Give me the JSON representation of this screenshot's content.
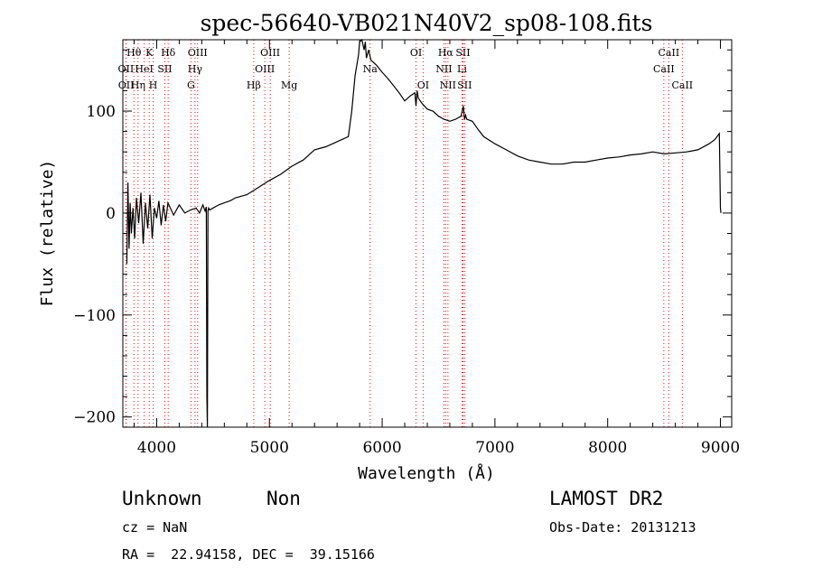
{
  "chart_data": {
    "type": "line",
    "title": "spec-56640-VB021N40V2_sp08-108.fits",
    "xlabel": "Wavelength (Å)",
    "ylabel": "Flux (relative)",
    "xlim": [
      3700,
      9100
    ],
    "ylim": [
      -210,
      170
    ],
    "xticks": [
      4000,
      5000,
      6000,
      7000,
      8000,
      9000
    ],
    "yticks": [
      -200,
      -100,
      0,
      100
    ],
    "ytick_labels": [
      "−200",
      "−100",
      "0",
      "100"
    ],
    "grid": false,
    "series": [
      {
        "x": [
          3735,
          3745,
          3755,
          3765,
          3775,
          3790,
          3805,
          3820,
          3840,
          3860,
          3880,
          3900,
          3920,
          3940,
          3960,
          3980,
          4000,
          4020,
          4040,
          4060,
          4080,
          4100,
          4150,
          4200,
          4250,
          4300,
          4350,
          4380,
          4410,
          4430,
          4440,
          4445,
          4450,
          4455,
          4460,
          4470,
          4500,
          4550,
          4600,
          4650,
          4700,
          4800,
          4900,
          5000,
          5100,
          5200,
          5300,
          5400,
          5500,
          5600,
          5700,
          5730,
          5760,
          5790,
          5800,
          5820,
          5840,
          5850,
          5860,
          5880,
          5900,
          5950,
          6000,
          6050,
          6100,
          6150,
          6200,
          6250,
          6290,
          6300,
          6310,
          6320,
          6350,
          6400,
          6450,
          6500,
          6550,
          6600,
          6650,
          6700,
          6720,
          6730,
          6740,
          6750,
          6800,
          6850,
          6900,
          7000,
          7100,
          7200,
          7300,
          7400,
          7500,
          7600,
          7700,
          7800,
          7900,
          8000,
          8100,
          8200,
          8300,
          8400,
          8500,
          8600,
          8700,
          8800,
          8900,
          8950,
          8990,
          9000,
          9005
        ],
        "y": [
          -50,
          30,
          -35,
          10,
          -20,
          5,
          -25,
          15,
          -10,
          20,
          -30,
          10,
          -15,
          18,
          -25,
          5,
          -5,
          12,
          -12,
          8,
          -8,
          10,
          -2,
          8,
          0,
          3,
          5,
          0,
          8,
          2,
          6,
          -180,
          -210,
          2,
          5,
          3,
          5,
          8,
          10,
          12,
          15,
          18,
          25,
          32,
          38,
          46,
          52,
          62,
          65,
          70,
          75,
          100,
          135,
          155,
          168,
          172,
          160,
          168,
          152,
          160,
          150,
          145,
          138,
          132,
          125,
          118,
          110,
          115,
          118,
          105,
          120,
          113,
          108,
          102,
          100,
          95,
          92,
          90,
          92,
          95,
          105,
          92,
          96,
          92,
          90,
          82,
          75,
          68,
          62,
          56,
          52,
          50,
          48,
          48,
          50,
          50,
          52,
          54,
          55,
          57,
          58,
          60,
          58,
          59,
          60,
          62,
          68,
          72,
          78,
          5,
          0
        ]
      }
    ],
    "spectral_lines": [
      {
        "name": "Hθ",
        "x": 3798,
        "row": 1
      },
      {
        "name": "OII",
        "x": 3727,
        "row": 2
      },
      {
        "name": "OII",
        "x": 3729,
        "row": 3
      },
      {
        "name": "Hη",
        "x": 3835,
        "row": 3
      },
      {
        "name": "K",
        "x": 3934,
        "row": 1
      },
      {
        "name": "HeI",
        "x": 3889,
        "row": 2
      },
      {
        "name": "H",
        "x": 3969,
        "row": 3
      },
      {
        "name": "SII",
        "x": 4072,
        "row": 2
      },
      {
        "name": "Hδ",
        "x": 4102,
        "row": 1
      },
      {
        "name": "OIII",
        "x": 4363,
        "row": 1
      },
      {
        "name": "Hγ",
        "x": 4340,
        "row": 2
      },
      {
        "name": "G",
        "x": 4304,
        "row": 3
      },
      {
        "name": "Hβ",
        "x": 4861,
        "row": 3
      },
      {
        "name": "OIII",
        "x": 4959,
        "row": 2
      },
      {
        "name": "OIII",
        "x": 5007,
        "row": 1
      },
      {
        "name": "Mg",
        "x": 5175,
        "row": 3
      },
      {
        "name": "Na",
        "x": 5893,
        "row": 2
      },
      {
        "name": "OI",
        "x": 6300,
        "row": 1
      },
      {
        "name": "OI",
        "x": 6363,
        "row": 3
      },
      {
        "name": "Hα",
        "x": 6563,
        "row": 1
      },
      {
        "name": "NII",
        "x": 6548,
        "row": 2
      },
      {
        "name": "NII",
        "x": 6583,
        "row": 3
      },
      {
        "name": "SII",
        "x": 6716,
        "row": 1
      },
      {
        "name": "Li",
        "x": 6708,
        "row": 2
      },
      {
        "name": "SII",
        "x": 6731,
        "row": 3
      },
      {
        "name": "CaII",
        "x": 8542,
        "row": 1
      },
      {
        "name": "CaII",
        "x": 8498,
        "row": 2
      },
      {
        "name": "CaII",
        "x": 8662,
        "row": 3
      }
    ],
    "colors": {
      "spectrum": "#000000",
      "line_markers": "#ff0000",
      "axes": "#000000"
    }
  },
  "footer": {
    "class_text": "Unknown",
    "subclass_text": "Non",
    "cz_text": "cz = NaN",
    "coords_text": "RA =  22.94158, DEC =  39.15166",
    "survey_text": "LAMOST DR2",
    "obs_date_text": "Obs-Date: 20131213"
  }
}
